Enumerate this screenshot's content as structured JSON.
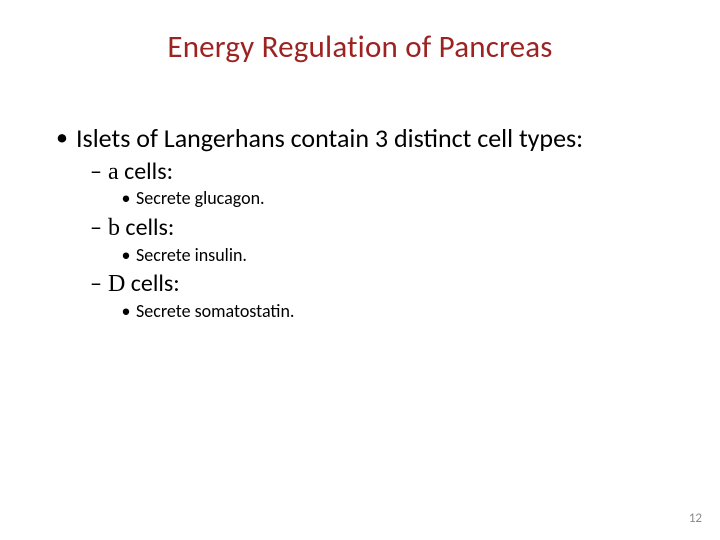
{
  "title": {
    "text": "Energy Regulation of Pancreas",
    "color": "#9b2423",
    "fontsize": 31
  },
  "content": {
    "text_color": "#000000",
    "l1_fontsize": 26,
    "l2_fontsize": 24,
    "l3_fontsize": 18,
    "bullet_char_l1": "•",
    "bullet_char_l2": "–",
    "bullet_char_l3": "•",
    "main": "Islets of Langerhans contain 3 distinct cell types:",
    "items": [
      {
        "label_prefix_greek": "a",
        "label_suffix": " cells:",
        "sub": "Secrete glucagon."
      },
      {
        "label_prefix_greek": "b",
        "label_suffix": " cells:",
        "sub": "Secrete insulin."
      },
      {
        "label_prefix_greek": "D",
        "label_suffix": " cells:",
        "sub": "Secrete somatostatin."
      }
    ]
  },
  "page_number": {
    "value": "12",
    "color": "#8a8a8a",
    "fontsize": 13
  },
  "background_color": "#ffffff"
}
